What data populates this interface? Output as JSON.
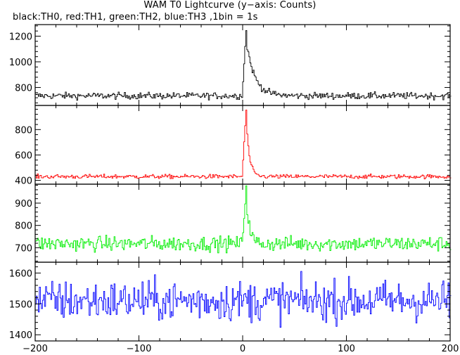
{
  "header": {
    "title": "WAM T0 Lightcurve (y−axis: Counts)",
    "subtitle": "black:TH0, red:TH1, green:TH2, blue:TH3 ,1bin = 1s"
  },
  "chart_data": [
    {
      "type": "line",
      "series": [
        {
          "name": "TH0",
          "color": "#000000",
          "baseline": 735,
          "noise": 22,
          "spike_peak": 1240,
          "spike_x": 3,
          "decay": 8
        }
      ],
      "xlim": [
        -200,
        200
      ],
      "ylim": [
        660,
        1290
      ],
      "yticks": [
        800,
        1000,
        1200
      ],
      "ytick_labels": [
        "800",
        "1000",
        "1200"
      ],
      "xlabel": "",
      "ylabel": ""
    },
    {
      "type": "line",
      "series": [
        {
          "name": "TH1",
          "color": "#ff0000",
          "baseline": 430,
          "noise": 14,
          "spike_peak": 960,
          "spike_x": 3,
          "decay": 3
        }
      ],
      "xlim": [
        -200,
        200
      ],
      "ylim": [
        370,
        990
      ],
      "yticks": [
        400,
        600,
        800
      ],
      "ytick_labels": [
        "400",
        "600",
        "800"
      ],
      "xlabel": "",
      "ylabel": ""
    },
    {
      "type": "line",
      "series": [
        {
          "name": "TH2",
          "color": "#00ee00",
          "baseline": 718,
          "noise": 28,
          "spike_peak": 975,
          "spike_x": 3,
          "decay": 3
        }
      ],
      "xlim": [
        -200,
        200
      ],
      "ylim": [
        635,
        985
      ],
      "yticks": [
        700,
        800,
        900
      ],
      "ytick_labels": [
        "700",
        "800",
        "900"
      ],
      "xlabel": "",
      "ylabel": ""
    },
    {
      "type": "line",
      "series": [
        {
          "name": "TH3",
          "color": "#0000ff",
          "baseline": 1510,
          "noise": 55,
          "spike_peak": 1510,
          "spike_x": 3,
          "decay": 1
        }
      ],
      "xlim": [
        -200,
        200
      ],
      "ylim": [
        1380,
        1635
      ],
      "yticks": [
        1400,
        1500,
        1600
      ],
      "ytick_labels": [
        "1400",
        "1500",
        "1600"
      ],
      "xlabel": "",
      "ylabel": ""
    }
  ],
  "xaxis": {
    "ticks": [
      -200,
      -100,
      0,
      100,
      200
    ],
    "tick_labels": [
      "−200",
      "−100",
      "0",
      "100",
      "200"
    ],
    "minor_step": 20
  }
}
